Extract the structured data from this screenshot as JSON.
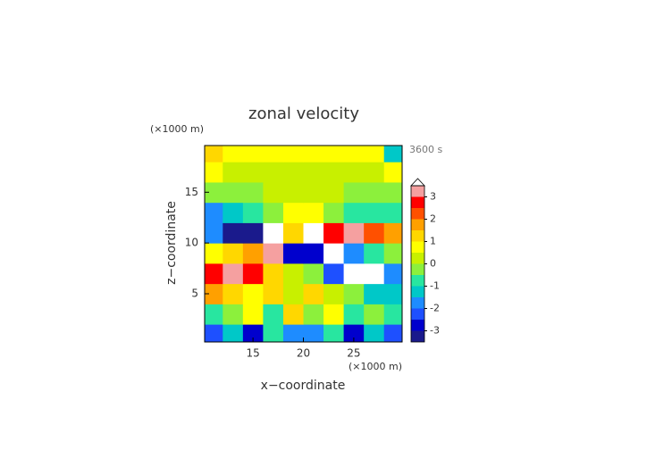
{
  "chart_data": {
    "type": "contour",
    "title": "zonal velocity",
    "x_label": "x−coordinate",
    "y_label": "z−coordinate",
    "x_unit": "(×1000 m)",
    "y_unit": "(×1000 m)",
    "time_label": "3600 s",
    "xlim": [
      10.2,
      29.8
    ],
    "ylim": [
      0.25,
      19.6
    ],
    "xticks": [
      15,
      20,
      25
    ],
    "yticks": [
      5,
      10,
      15
    ],
    "x": [
      11,
      13,
      15,
      17,
      19,
      21,
      23,
      25,
      27,
      29
    ],
    "y": [
      1,
      3,
      5,
      7,
      9,
      11,
      13,
      15,
      17,
      19
    ],
    "z": [
      [
        -2.2,
        -1.5,
        -2.8,
        -1,
        -2,
        -2,
        -1,
        -2.8,
        -1.5,
        -2.5
      ],
      [
        -1,
        -0.2,
        0.5,
        -0.8,
        1,
        -0.5,
        0.5,
        -0.8,
        -0.5,
        -1
      ],
      [
        1.8,
        1.2,
        0.5,
        1,
        0.3,
        1,
        0.3,
        -0.5,
        -1.5,
        -1.5
      ],
      [
        2.6,
        3.2,
        2.5,
        1,
        0.3,
        -0.5,
        -2.5,
        -3.8,
        -3.6,
        -2
      ],
      [
        0.5,
        1,
        1.5,
        3,
        -3,
        -3,
        -3.6,
        -2,
        -1,
        -0.5
      ],
      [
        -1.8,
        -3.2,
        -3.3,
        -4,
        1,
        4,
        2.8,
        3,
        2,
        1.5
      ],
      [
        -1.6,
        -1.2,
        -0.8,
        -0.3,
        0.8,
        0.8,
        -0.3,
        -0.6,
        -0.8,
        -0.8
      ],
      [
        -0.3,
        -0.3,
        -0.2,
        0.1,
        0.4,
        0.4,
        0.1,
        -0.2,
        -0.3,
        -0.3
      ],
      [
        0.6,
        0.4,
        0.3,
        0.3,
        0.3,
        0.3,
        0.3,
        0.3,
        0.4,
        0.6
      ],
      [
        1.2,
        0.8,
        0.7,
        0.7,
        0.7,
        0.6,
        0.6,
        0.6,
        0.8,
        -1.2
      ]
    ],
    "levels": [
      -3.5,
      -3,
      -2.5,
      -2,
      -1.5,
      -1,
      -0.5,
      0,
      0.5,
      1,
      1.5,
      2,
      2.5,
      3,
      3.5
    ],
    "colors": [
      "#1a1a8c",
      "#0000cd",
      "#1e50ff",
      "#1e8cff",
      "#00c8c8",
      "#28e6a0",
      "#8cf03c",
      "#c8f000",
      "#ffff00",
      "#ffd700",
      "#ffa000",
      "#ff5000",
      "#ff0000",
      "#f5a0a0"
    ],
    "extend_color": "#ffffff",
    "colorbar_ticks": [
      -3,
      -2,
      -1,
      0,
      1,
      2,
      3
    ]
  }
}
